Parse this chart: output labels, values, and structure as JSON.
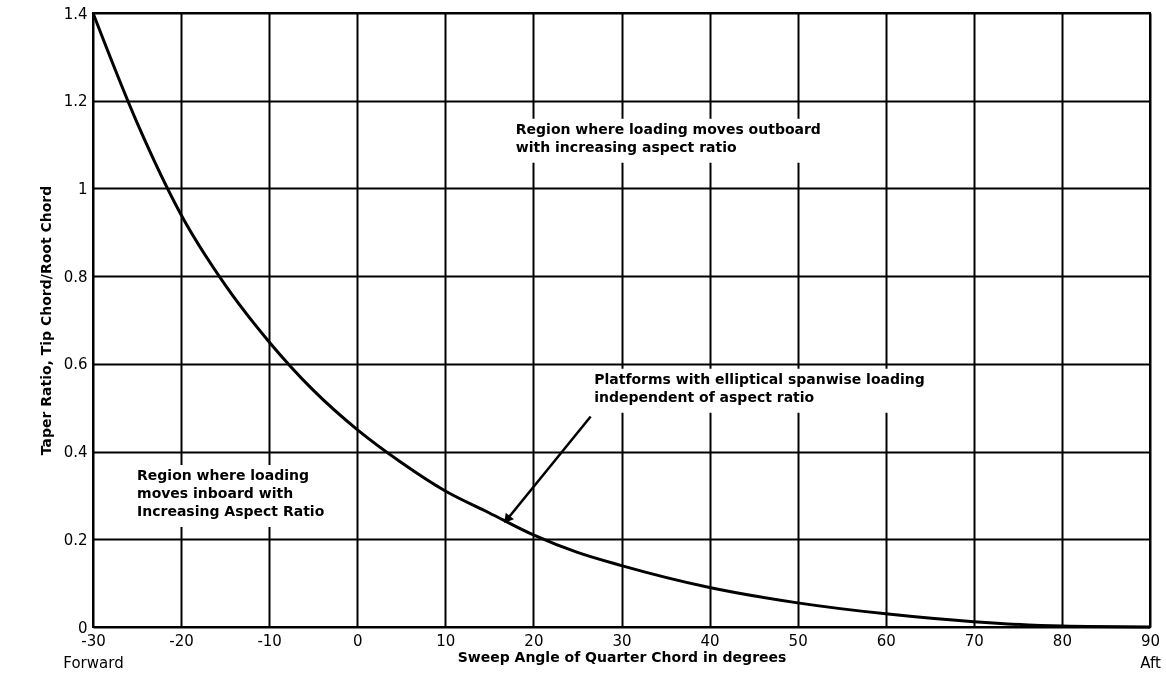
{
  "chart_data": {
    "type": "line",
    "xlabel": "Sweep Angle of Quarter Chord in degrees",
    "ylabel": "Taper Ratio, Tip Chord/Root Chord",
    "x": [
      -30,
      -25,
      -20,
      -15,
      -10,
      -5,
      0,
      5,
      10,
      15,
      20,
      25,
      30,
      40,
      50,
      60,
      70,
      80,
      90
    ],
    "series": [
      {
        "color": "#000000",
        "values": [
          1.4,
          1.15,
          0.94,
          0.78,
          0.65,
          0.54,
          0.45,
          0.375,
          0.31,
          0.26,
          0.21,
          0.17,
          0.14,
          0.09,
          0.055,
          0.03,
          0.012,
          0.002,
          0
        ]
      }
    ],
    "xlim": [
      -30,
      90
    ],
    "ylim": [
      0,
      1.4
    ],
    "xticks": [
      {
        "value": -30,
        "label": "-30\nForward"
      },
      -20,
      -10,
      0,
      10,
      20,
      30,
      40,
      50,
      60,
      70,
      80,
      {
        "value": 90,
        "label": "90\nAft"
      }
    ],
    "yticks": [
      0,
      0.2,
      0.4,
      0.6,
      0.8,
      1.0,
      1.2,
      1.4
    ],
    "grid": true,
    "marker": "none",
    "line_style": "solid",
    "annotations": [
      "Region where loading moves outboard\nwith increasing aspect ratio",
      "Region where loading\nmoves inboard with\nIncreasing Aspect Ratio",
      {
        "text": "Platforms with elliptical spanwise loading\nindependent of aspect ratio",
        "x": 17,
        "y": 0.245
      }
    ]
  }
}
